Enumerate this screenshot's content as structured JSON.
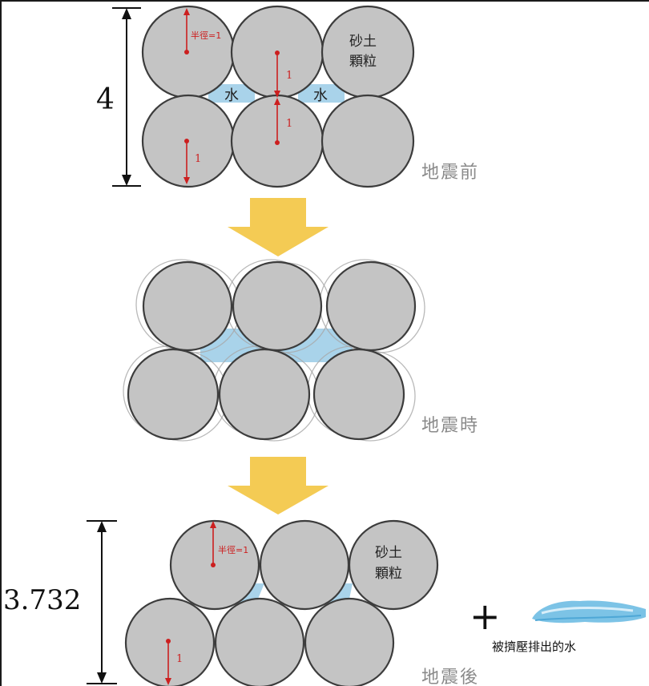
{
  "before": {
    "stage_label": "地震前",
    "height_label": "4",
    "radius_label": "半徑=1",
    "unit_labels": [
      "1",
      "1",
      "1"
    ],
    "grain_label_line1": "砂土",
    "grain_label_line2": "顆粒",
    "water_labels": [
      "水",
      "水"
    ]
  },
  "during": {
    "stage_label": "地震時"
  },
  "after": {
    "stage_label": "地震後",
    "height_label": "3.732",
    "radius_label": "半徑=1",
    "unit_label": "1",
    "grain_label_line1": "砂土",
    "grain_label_line2": "顆粒",
    "plus_sign": "+",
    "drained_water_label": "被擠壓排出的水"
  },
  "colors": {
    "grain_fill": "#c4c4c4",
    "water": "#a9d3ea",
    "arrow": "#f4cb54",
    "annotation_red": "#cc1f1f"
  }
}
